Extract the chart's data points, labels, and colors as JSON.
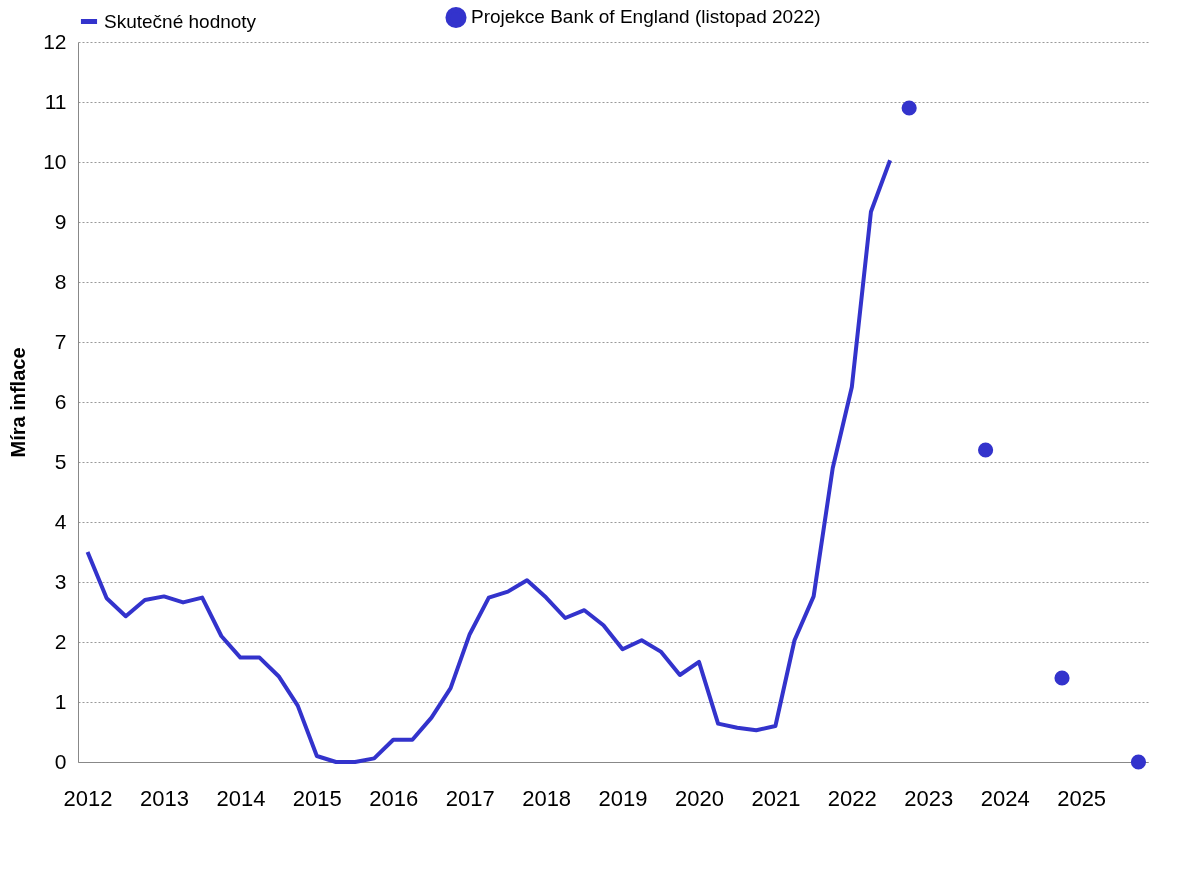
{
  "chart_data": {
    "type": "line",
    "ylabel": "Míra inflace",
    "ylim": [
      0,
      12
    ],
    "yticks": [
      0,
      1,
      2,
      3,
      4,
      5,
      6,
      7,
      8,
      9,
      10,
      11,
      12
    ],
    "xlim": [
      2011.875,
      2025.875
    ],
    "xticks": [
      2012,
      2013,
      2014,
      2015,
      2016,
      2017,
      2018,
      2019,
      2020,
      2021,
      2022,
      2023,
      2024,
      2025
    ],
    "grid": "y",
    "legend": "top",
    "series": [
      {
        "name": "Skutečné hodnoty",
        "type": "line",
        "color": "#3333cc",
        "x": [
          2012,
          2012.25,
          2012.5,
          2012.75,
          2013,
          2013.25,
          2013.5,
          2013.75,
          2014,
          2014.25,
          2014.5,
          2014.75,
          2015,
          2015.25,
          2015.5,
          2015.75,
          2016,
          2016.25,
          2016.5,
          2016.75,
          2017,
          2017.25,
          2017.5,
          2017.75,
          2018,
          2018.25,
          2018.5,
          2018.75,
          2019,
          2019.25,
          2019.5,
          2019.75,
          2020,
          2020.25,
          2020.5,
          2020.75,
          2021,
          2021.25,
          2021.5,
          2021.75,
          2022,
          2022.25,
          2022.5
        ],
        "values": [
          3.5,
          2.73,
          2.43,
          2.7,
          2.76,
          2.66,
          2.74,
          2.1,
          1.74,
          1.74,
          1.43,
          0.94,
          0.1,
          0,
          0,
          0.06,
          0.37,
          0.37,
          0.74,
          1.23,
          2.13,
          2.74,
          2.84,
          3.03,
          2.74,
          2.4,
          2.53,
          2.28,
          1.88,
          2.03,
          1.84,
          1.45,
          1.67,
          0.64,
          0.57,
          0.53,
          0.6,
          2.03,
          2.76,
          4.9,
          6.25,
          9.17,
          10.03
        ]
      },
      {
        "name": "Projekce Bank of England (listopad 2022)",
        "type": "scatter",
        "color": "#3333cc",
        "x": [
          2022.75,
          2023.75,
          2024.75,
          2025.75
        ],
        "values": [
          10.9,
          5.2,
          1.4,
          0
        ]
      }
    ]
  }
}
